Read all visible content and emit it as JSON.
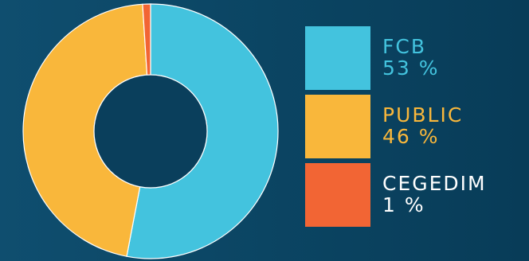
{
  "chart_data": {
    "type": "pie",
    "variant": "donut",
    "title": "",
    "legend_position": "right",
    "slices": [
      {
        "label": "FCB",
        "value": 53,
        "display": "53 %",
        "color": "#43c3de",
        "text_color": "#43c3de"
      },
      {
        "label": "PUBLIC",
        "value": 46,
        "display": "46 %",
        "color": "#f9b73b",
        "text_color": "#f9b73b"
      },
      {
        "label": "CEGEDIM",
        "value": 1,
        "display": "1 %",
        "color": "#f26534",
        "text_color": "#ffffff"
      }
    ]
  },
  "colors": {
    "background": "#0b4563",
    "hole": "#0a3f5c",
    "slice_border": "#ffffff"
  }
}
